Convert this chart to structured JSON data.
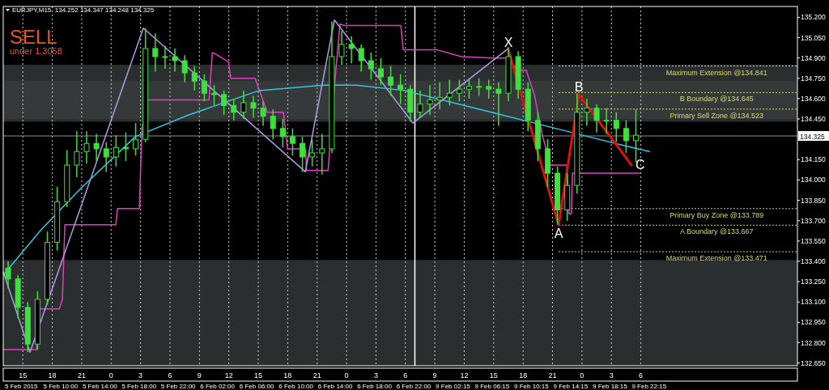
{
  "chart_data": {
    "type": "candlestick",
    "title": "EURJPY,M15  134.252 134.347 134.248 134.325",
    "color": "#3ee03e",
    "x": [
      "2015-02-05T13:30",
      "2015-02-05T14:30",
      "2015-02-05T15:30",
      "2015-02-05T16:30",
      "2015-02-05T17:30",
      "2015-02-05T18:30",
      "2015-02-05T19:30",
      "2015-02-05T20:30",
      "2015-02-05T21:30",
      "2015-02-05T22:30",
      "2015-02-05T23:30",
      "2015-02-06T00:30",
      "2015-02-06T01:30",
      "2015-02-06T02:30",
      "2015-02-06T03:30",
      "2015-02-06T04:30",
      "2015-02-06T05:30",
      "2015-02-06T06:30",
      "2015-02-06T07:30",
      "2015-02-06T08:30",
      "2015-02-06T09:30",
      "2015-02-06T10:30",
      "2015-02-06T11:30",
      "2015-02-06T12:30",
      "2015-02-06T13:30",
      "2015-02-06T14:30",
      "2015-02-06T15:30",
      "2015-02-06T16:30",
      "2015-02-06T17:30",
      "2015-02-06T18:30",
      "2015-02-06T19:30",
      "2015-02-06T20:30",
      "2015-02-06T21:30",
      "2015-02-06T22:30",
      "2015-02-06T23:30",
      "2015-02-07T00:30",
      "2015-02-07T01:30",
      "2015-02-07T02:30",
      "2015-02-07T03:30",
      "2015-02-07T04:30",
      "2015-02-07T05:30",
      "2015-02-07T06:30",
      "2015-02-07T07:30",
      "2015-02-07T08:30",
      "2015-02-07T09:30",
      "2015-02-07T10:30",
      "2015-02-07T11:30",
      "2015-02-07T12:30",
      "2015-02-07T13:30",
      "2015-02-07T14:30",
      "2015-02-07T15:30",
      "2015-02-07T16:30",
      "2015-02-07T17:30",
      "2015-02-07T18:30",
      "2015-02-07T19:30",
      "2015-02-07T20:30",
      "2015-02-07T21:30",
      "2015-02-07T22:30",
      "2015-02-07T23:30",
      "2015-02-08T00:30",
      "2015-02-08T01:30",
      "2015-02-08T02:30",
      "2015-02-08T03:30",
      "2015-02-08T04:30",
      "2015-02-08T05:30"
    ],
    "ohlc": [
      [
        133.35,
        133.4,
        133.2,
        133.27
      ],
      [
        133.27,
        133.3,
        132.98,
        133.06
      ],
      [
        133.06,
        133.1,
        132.73,
        132.79
      ],
      [
        132.79,
        133.18,
        132.75,
        133.12
      ],
      [
        133.12,
        133.62,
        133.08,
        133.54
      ],
      [
        133.54,
        133.95,
        133.48,
        133.84
      ],
      [
        133.84,
        134.22,
        133.8,
        134.11
      ],
      [
        134.11,
        134.36,
        134.02,
        134.21
      ],
      [
        134.21,
        134.36,
        134.12,
        134.27
      ],
      [
        134.27,
        134.34,
        134.14,
        134.23
      ],
      [
        134.23,
        134.28,
        134.06,
        134.17
      ],
      [
        134.17,
        134.33,
        134.1,
        134.24
      ],
      [
        134.24,
        134.35,
        134.14,
        134.23
      ],
      [
        134.23,
        134.42,
        134.18,
        134.3
      ],
      [
        134.3,
        135.12,
        134.28,
        134.97
      ],
      [
        134.97,
        135.08,
        134.8,
        134.91
      ],
      [
        134.91,
        134.99,
        134.82,
        134.91
      ],
      [
        134.91,
        134.97,
        134.8,
        134.88
      ],
      [
        134.88,
        134.92,
        134.72,
        134.79
      ],
      [
        134.79,
        134.84,
        134.66,
        134.73
      ],
      [
        134.73,
        134.78,
        134.58,
        134.64
      ],
      [
        134.64,
        134.7,
        134.55,
        134.63
      ],
      [
        134.63,
        134.66,
        134.48,
        134.55
      ],
      [
        134.55,
        134.6,
        134.44,
        134.5
      ],
      [
        134.5,
        134.66,
        134.45,
        134.57
      ],
      [
        134.57,
        134.62,
        134.46,
        134.53
      ],
      [
        134.53,
        134.58,
        134.4,
        134.47
      ],
      [
        134.47,
        134.52,
        134.3,
        134.38
      ],
      [
        134.38,
        134.45,
        134.24,
        134.32
      ],
      [
        134.32,
        134.38,
        134.18,
        134.27
      ],
      [
        134.27,
        134.32,
        134.06,
        134.17
      ],
      [
        134.17,
        134.3,
        134.1,
        134.2
      ],
      [
        134.2,
        134.34,
        134.04,
        134.23
      ],
      [
        134.23,
        135.17,
        134.2,
        134.91
      ],
      [
        134.91,
        135.1,
        134.85,
        135
      ],
      [
        135,
        135.06,
        134.86,
        134.97
      ],
      [
        134.97,
        135,
        134.8,
        134.88
      ],
      [
        134.88,
        134.94,
        134.74,
        134.82
      ],
      [
        134.82,
        134.9,
        134.7,
        134.76
      ],
      [
        134.76,
        134.84,
        134.62,
        134.7
      ],
      [
        134.7,
        134.78,
        134.56,
        134.67
      ],
      [
        134.67,
        134.7,
        134.43,
        134.5
      ],
      [
        134.5,
        134.66,
        134.46,
        134.56
      ],
      [
        134.56,
        134.7,
        134.48,
        134.59
      ],
      [
        134.59,
        134.72,
        134.52,
        134.61
      ],
      [
        134.61,
        134.74,
        134.55,
        134.64
      ],
      [
        134.64,
        134.74,
        134.58,
        134.67
      ],
      [
        134.67,
        134.75,
        134.6,
        134.69
      ],
      [
        134.69,
        134.75,
        134.62,
        134.69
      ],
      [
        134.69,
        134.74,
        134.6,
        134.67
      ],
      [
        134.67,
        134.72,
        134.4,
        134.64
      ],
      [
        134.64,
        134.98,
        134.58,
        134.91
      ],
      [
        134.91,
        134.95,
        134.6,
        134.67
      ],
      [
        134.67,
        134.72,
        134.36,
        134.44
      ],
      [
        134.44,
        134.5,
        134.14,
        134.23
      ],
      [
        134.23,
        134.3,
        133.95,
        134.05
      ],
      [
        134.05,
        134.1,
        133.67,
        133.78
      ],
      [
        133.78,
        134.05,
        133.7,
        133.96
      ],
      [
        133.96,
        134.64,
        133.9,
        134.5
      ],
      [
        134.5,
        134.6,
        134.4,
        134.53
      ],
      [
        134.53,
        134.56,
        134.35,
        134.44
      ],
      [
        134.44,
        134.53,
        134.34,
        134.44
      ],
      [
        134.44,
        134.5,
        134.28,
        134.38
      ],
      [
        134.38,
        134.44,
        134.2,
        134.29
      ],
      [
        134.29,
        134.52,
        134.13,
        134.33
      ]
    ],
    "series": [
      {
        "type": "line",
        "color": "#e040c0",
        "x": [
          "2015-02-05T13:01",
          "2015-02-05T16:24",
          "2015-02-05T16:39",
          "2015-02-05T18:43",
          "2015-02-05T19:02",
          "2015-02-05T19:17",
          "2015-02-06T00:29",
          "2015-02-06T00:39",
          "2015-02-06T02:53",
          "2015-02-06T03:08",
          "2015-02-06T03:43",
          "2015-02-06T09:59",
          "2015-02-06T10:19",
          "2015-02-06T10:38",
          "2015-02-06T11:58",
          "2015-02-06T12:12",
          "2015-02-06T14:41",
          "2015-02-06T15:55",
          "2015-02-06T17:34",
          "2015-02-06T17:59",
          "2015-02-06T19:50",
          "2015-02-06T19:55",
          "2015-02-06T22:07",
          "2015-02-06T22:50",
          "2015-02-06T23:20",
          "2015-02-06T23:46",
          "2015-02-07T05:32",
          "2015-02-07T05:47",
          "2015-02-07T09:14",
          "2015-02-07T11:43",
          "2015-02-07T15:01",
          "2015-02-07T16:16",
          "2015-02-07T17:30",
          "2015-02-07T18:19",
          "2015-02-07T19:09",
          "2015-02-07T19:58",
          "2015-02-07T20:48",
          "2015-02-07T22:27",
          "2015-02-07T22:41",
          "2015-02-07T22:55",
          "2015-02-07T23:02",
          "2015-02-08T05:52"
        ],
        "values": [
          132.75,
          132.75,
          133.05,
          133.05,
          133.12,
          133.67,
          133.67,
          133.79,
          133.79,
          134.38,
          134.59,
          134.59,
          134.94,
          134.93,
          134.87,
          134.75,
          134.75,
          134.5,
          134.5,
          134.23,
          134.23,
          134.07,
          134.07,
          134.75,
          135.15,
          135.14,
          135.14,
          134.96,
          134.96,
          134.91,
          134.9,
          134.9,
          134.81,
          134.81,
          134.63,
          134.33,
          134.11,
          134.11,
          133.75,
          133.75,
          134.05,
          134.05
        ]
      },
      {
        "type": "line",
        "color": "#b09ce6",
        "x": [
          "2015-02-05T13:01",
          "2015-02-05T15:44",
          "2015-02-06T03:17",
          "2015-02-06T19:48",
          "2015-02-06T22:46",
          "2015-02-07T06:46",
          "2015-02-07T16:30"
        ],
        "values": [
          133.32,
          132.73,
          135.12,
          134.06,
          135.18,
          134.42,
          134.97
        ]
      },
      {
        "type": "line",
        "color": "#30c8e0",
        "x": [
          "2015-02-05T13:01",
          "2015-02-05T16:49",
          "2015-02-05T20:56",
          "2015-02-06T02:28",
          "2015-02-06T07:55",
          "2015-02-06T15:05",
          "2015-02-06T21:41",
          "2015-02-07T00:59",
          "2015-02-07T05:56",
          "2015-02-07T14:11",
          "2015-02-07T22:27",
          "2015-02-08T03:58",
          "2015-02-08T06:52"
        ],
        "values": [
          133.3,
          133.63,
          133.94,
          134.32,
          134.48,
          134.66,
          134.7,
          134.7,
          134.66,
          134.51,
          134.36,
          134.26,
          134.21
        ]
      },
      {
        "type": "line",
        "color": "#e01010",
        "x": [
          "2015-02-07T16:30",
          "2015-02-07T21:37",
          "2015-02-07T23:41",
          "2015-02-08T05:03"
        ],
        "values": [
          134.96,
          133.67,
          134.63,
          134.11
        ]
      }
    ],
    "annotations": [
      "SELL",
      "under 1.3058",
      "5 Feb 2015",
      "5 Feb 10:00",
      "5 Feb 14:00",
      "5 Feb 18:00",
      "5 Feb 22:00",
      "6 Feb 02:00",
      "6 Feb 06:00",
      "6 Feb 10:00",
      "6 Feb 14:00",
      "6 Feb 18:00",
      "6 Feb 22:00",
      "9 Feb 02:15",
      "9 Feb 06:15",
      "9 Feb 10:15",
      "9 Feb 14:15",
      "9 Feb 18:15",
      "9 Feb 22:15",
      {
        "text": "X",
        "x": "2015-02-07T16:30",
        "y": 134.96
      },
      {
        "text": "A",
        "x": "2015-02-07T21:37",
        "y": 133.67
      },
      {
        "text": "B",
        "x": "2015-02-07T23:41",
        "y": 134.63
      },
      {
        "text": "C",
        "x": "2015-02-08T05:03",
        "y": 134.11
      }
    ],
    "ref_lines": [
      {
        "axis": "y",
        "value": 134.841,
        "label": "Maximum Extension @134.841",
        "color": "#d8d870",
        "line_style": "dotted"
      },
      {
        "axis": "y",
        "value": 134.645,
        "label": "B Boundary @134.645",
        "color": "#d8d870",
        "line_style": "dotted"
      },
      {
        "axis": "y",
        "value": 134.523,
        "label": "Primary Sell Zone @134.523",
        "color": "#d8d870",
        "line_style": "dotted"
      },
      {
        "axis": "y",
        "value": 133.789,
        "label": "Primary Buy Zone @133.789",
        "color": "#d8d870",
        "line_style": "dotted"
      },
      {
        "axis": "y",
        "value": 133.667,
        "label": "A Boundary @133.667",
        "color": "#d8d870",
        "line_style": "dotted"
      },
      {
        "axis": "y",
        "value": 133.471,
        "label": "Maximum Extension @133.471",
        "color": "#d8d870",
        "line_style": "dotted"
      },
      {
        "axis": "y",
        "value": 134.325,
        "label": "134.325",
        "color": "#8c8c9c",
        "line_style": "solid"
      },
      {
        "axis": "x",
        "value": "2015-02-07T06:58",
        "color": "#ffffff",
        "line_style": "solid"
      }
    ],
    "bands": [
      {
        "axis": "y",
        "from": 132.63,
        "to": 133.41,
        "color": "#3a3d3d"
      },
      {
        "axis": "y",
        "from": 134.43,
        "to": 134.85,
        "color": "#3a3d3d"
      },
      {
        "axis": "y",
        "from": 134.45,
        "to": 134.73,
        "color": "#3a3d3d"
      }
    ],
    "xlim": [
      "2015-02-05T13:00",
      "2015-02-08T21:58"
    ],
    "xticks": [
      {
        "value": "2015-02-05T15:00",
        "label": "15"
      },
      {
        "value": "2015-02-05T18:00",
        "label": "18"
      },
      {
        "value": "2015-02-05T21:00",
        "label": "21"
      },
      {
        "value": "2015-02-06T00:00",
        "label": "0"
      },
      {
        "value": "2015-02-06T03:00",
        "label": "3"
      },
      {
        "value": "2015-02-06T06:00",
        "label": "6"
      },
      {
        "value": "2015-02-06T09:00",
        "label": "9"
      },
      {
        "value": "2015-02-06T12:00",
        "label": "12"
      },
      {
        "value": "2015-02-06T15:00",
        "label": "15"
      },
      {
        "value": "2015-02-06T18:00",
        "label": "18"
      },
      {
        "value": "2015-02-06T21:00",
        "label": "21"
      },
      {
        "value": "2015-02-07T00:00",
        "label": "0"
      },
      {
        "value": "2015-02-07T03:00",
        "label": "3"
      },
      {
        "value": "2015-02-07T06:00",
        "label": "6"
      },
      {
        "value": "2015-02-07T09:00",
        "label": "9"
      },
      {
        "value": "2015-02-07T12:00",
        "label": "12"
      },
      {
        "value": "2015-02-07T15:00",
        "label": "15"
      },
      {
        "value": "2015-02-07T18:00",
        "label": "18"
      },
      {
        "value": "2015-02-07T21:00",
        "label": "21"
      },
      {
        "value": "2015-02-08T00:00",
        "label": "0"
      },
      {
        "value": "2015-02-08T03:00",
        "label": "3"
      },
      {
        "value": "2015-02-08T06:00",
        "label": "6"
      }
    ],
    "ylim": [
      132.63,
      135.28
    ],
    "yticks": [
      {
        "value": 132.65,
        "label": "132.650"
      },
      {
        "value": 132.8,
        "label": "132.800"
      },
      {
        "value": 132.95,
        "label": "132.950"
      },
      {
        "value": 133.1,
        "label": "133.100"
      },
      {
        "value": 133.25,
        "label": "133.250"
      },
      {
        "value": 133.4,
        "label": "133.400"
      },
      {
        "value": 133.55,
        "label": "133.550"
      },
      {
        "value": 133.7,
        "label": "133.700"
      },
      {
        "value": 133.85,
        "label": "133.850"
      },
      {
        "value": 134,
        "label": "134.000"
      },
      {
        "value": 134.15,
        "label": "134.150"
      },
      {
        "value": 134.45,
        "label": "134.450"
      },
      {
        "value": 134.6,
        "label": "134.600"
      },
      {
        "value": 134.75,
        "label": "134.750"
      },
      {
        "value": 134.9,
        "label": "134.900"
      },
      {
        "value": 135.05,
        "label": "135.050"
      },
      {
        "value": 135.2,
        "label": "135.200"
      }
    ],
    "grid": "x"
  }
}
